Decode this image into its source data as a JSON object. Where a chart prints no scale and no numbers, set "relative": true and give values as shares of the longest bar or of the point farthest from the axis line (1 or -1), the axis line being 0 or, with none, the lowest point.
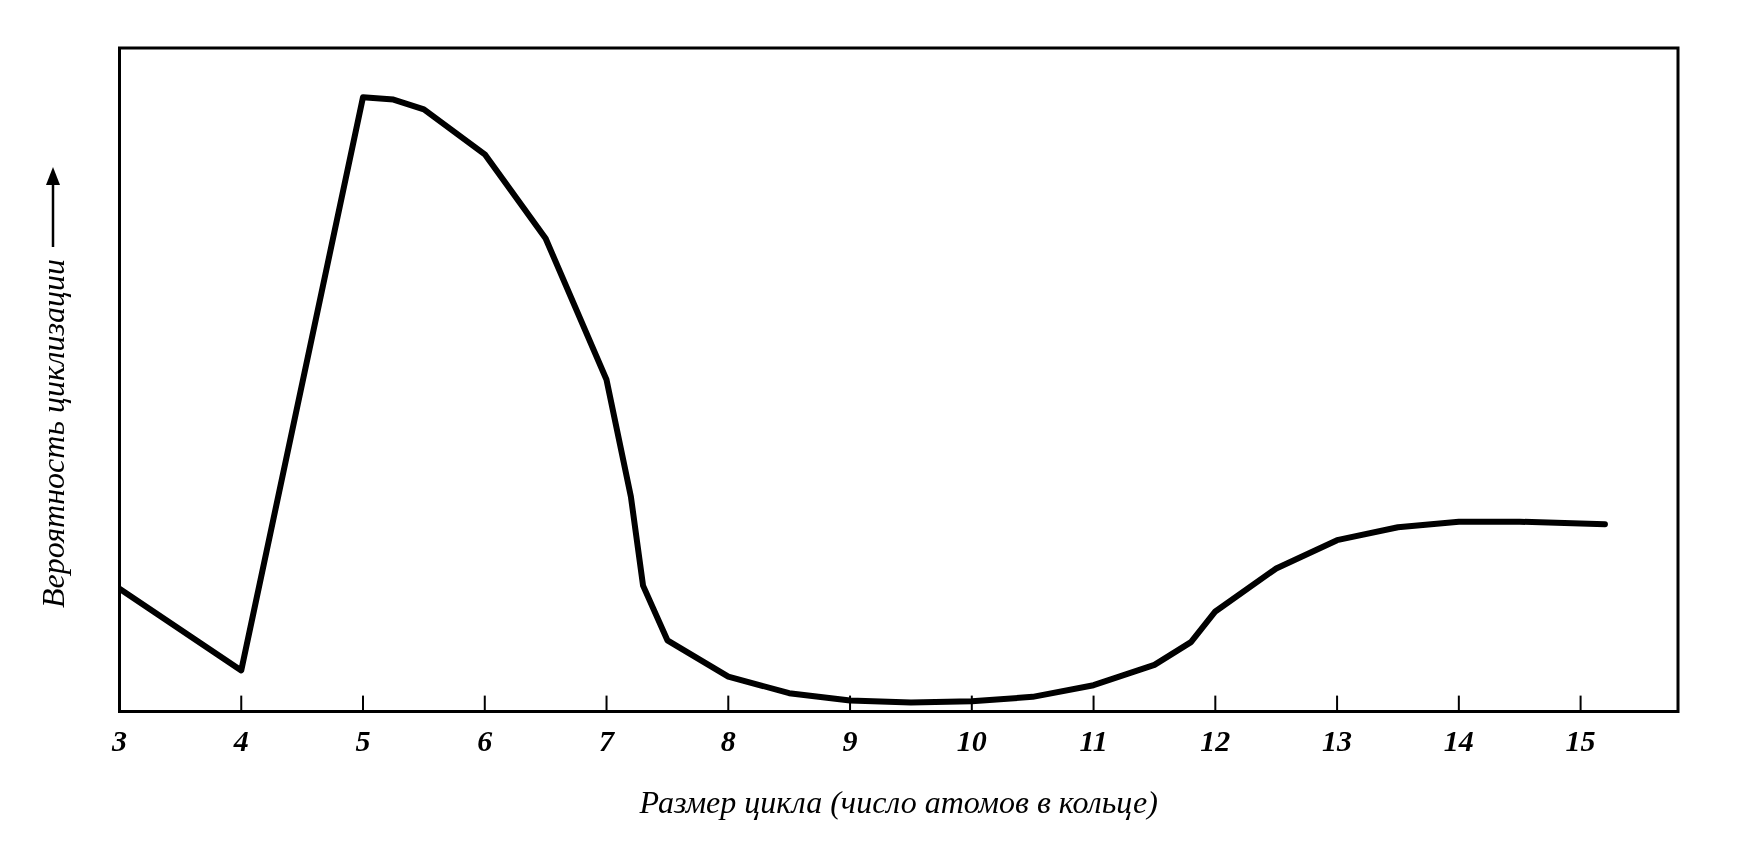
{
  "chart_data": {
    "type": "line",
    "relative": true,
    "xlabel": "Размер цикла (число атомов в кольце)",
    "ylabel": "Вероятность циклизации",
    "xlim": [
      3,
      15.8
    ],
    "xticks": [
      3,
      4,
      5,
      6,
      7,
      8,
      9,
      10,
      11,
      12,
      13,
      14,
      15
    ],
    "grid": false,
    "legend": false,
    "marker": "none",
    "line_style": "solid",
    "series": [
      {
        "color": "#000000",
        "x": [
          3,
          4,
          5,
          5.25,
          5.5,
          6,
          6.5,
          7,
          7.2,
          7.3,
          7.5,
          8,
          8.5,
          9,
          9.5,
          10,
          10.5,
          11,
          11.5,
          11.8,
          12,
          12.5,
          13,
          13.5,
          14,
          14.5,
          15.2
        ],
        "values": [
          0.2,
          0.067,
          1,
          0.996,
          0.98,
          0.907,
          0.77,
          0.54,
          0.35,
          0.205,
          0.116,
          0.057,
          0.03,
          0.018,
          0.015,
          0.017,
          0.024,
          0.043,
          0.076,
          0.113,
          0.163,
          0.233,
          0.279,
          0.3,
          0.309,
          0.309,
          0.305
        ]
      }
    ]
  }
}
